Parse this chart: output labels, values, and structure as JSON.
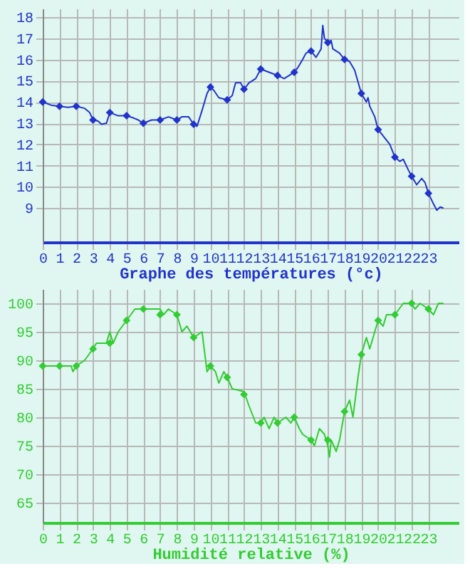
{
  "chart_data": [
    {
      "type": "line",
      "xlabel": "Graphe des températures (°c)",
      "xlim": [
        0,
        24.8
      ],
      "xticks": [
        0,
        1,
        2,
        3,
        4,
        5,
        6,
        7,
        8,
        9,
        10,
        11,
        12,
        13,
        14,
        15,
        16,
        17,
        18,
        19,
        20,
        21,
        22,
        23
      ],
      "ylim": [
        7.4,
        18.4
      ],
      "yticks": [
        9,
        10,
        11,
        12,
        13,
        14,
        15,
        16,
        17,
        18
      ],
      "grid": true,
      "series": [
        {
          "type": "line",
          "color": "#2233cc",
          "marker": "none",
          "x": [
            0,
            0.5,
            1,
            1.5,
            2,
            2.5,
            2.8,
            3,
            3.3,
            3.5,
            3.8,
            4,
            4.5,
            5,
            5.4,
            5.7,
            6,
            6.5,
            7,
            7.5,
            8,
            8.3,
            8.7,
            9,
            9.2,
            9.5,
            9.8,
            10,
            10.2,
            10.5,
            11,
            11.3,
            11.5,
            11.8,
            12,
            12.3,
            12.7,
            13,
            13.5,
            14,
            14.4,
            15,
            15.2,
            15.5,
            15.7,
            16,
            16.3,
            16.6,
            16.7,
            16.8,
            17,
            17.2,
            17.3,
            17.7,
            18,
            18.3,
            18.6,
            19,
            19.3,
            19.4,
            19.5,
            19.8,
            20,
            20.4,
            20.7,
            21,
            21.3,
            21.5,
            21.8,
            22,
            22.3,
            22.6,
            22.8,
            23,
            23.3,
            23.5,
            23.7,
            23.9
          ],
          "values": [
            14.0,
            13.85,
            13.8,
            13.75,
            13.8,
            13.7,
            13.5,
            13.15,
            13.1,
            12.95,
            13.0,
            13.5,
            13.35,
            13.35,
            13.25,
            13.15,
            13.0,
            13.15,
            13.15,
            13.3,
            13.15,
            13.3,
            13.3,
            12.95,
            12.85,
            13.6,
            14.4,
            14.7,
            14.55,
            14.2,
            14.1,
            14.3,
            14.9,
            14.9,
            14.6,
            14.9,
            15.1,
            15.55,
            15.4,
            15.25,
            15.1,
            15.4,
            15.6,
            16.0,
            16.3,
            16.4,
            16.1,
            16.5,
            17.6,
            17.0,
            16.8,
            16.9,
            16.5,
            16.3,
            16.0,
            15.9,
            15.5,
            14.4,
            14.0,
            14.2,
            13.8,
            13.3,
            12.7,
            12.3,
            12.0,
            11.4,
            11.2,
            11.3,
            10.8,
            10.5,
            10.1,
            10.4,
            10.2,
            9.7,
            9.2,
            8.9,
            9.05,
            9.0
          ]
        },
        {
          "type": "scatter",
          "color": "#2233cc",
          "marker": "diamond",
          "x": [
            0,
            1,
            2,
            3,
            4,
            5,
            6,
            7,
            8,
            9,
            10,
            11,
            12,
            13,
            14,
            15,
            16,
            17,
            18,
            19,
            20,
            21,
            22,
            23
          ],
          "values": [
            14.0,
            13.8,
            13.8,
            13.15,
            13.5,
            13.35,
            13.0,
            13.15,
            13.15,
            12.95,
            14.7,
            14.1,
            14.6,
            15.55,
            15.25,
            15.4,
            16.4,
            16.8,
            16.0,
            14.4,
            12.7,
            11.4,
            10.5,
            9.7
          ]
        }
      ]
    },
    {
      "type": "line",
      "xlabel": "Humidité relative (%)",
      "xlim": [
        0,
        24.8
      ],
      "xticks": [
        0,
        1,
        2,
        3,
        4,
        5,
        6,
        7,
        8,
        9,
        10,
        11,
        12,
        13,
        14,
        15,
        16,
        17,
        18,
        19,
        20,
        21,
        22,
        23
      ],
      "ylim": [
        61.5,
        102.5
      ],
      "yticks": [
        65,
        70,
        75,
        80,
        85,
        90,
        95,
        100
      ],
      "grid": true,
      "series": [
        {
          "type": "line",
          "color": "#33cc33",
          "marker": "none",
          "x": [
            0,
            1.7,
            1.8,
            2,
            2.5,
            3,
            3.2,
            3.8,
            4,
            4.2,
            4.5,
            5,
            5.5,
            6,
            7,
            7.2,
            7.5,
            8,
            8.3,
            8.6,
            8.8,
            9,
            9.5,
            9.8,
            10,
            10.3,
            10.5,
            10.8,
            11,
            11.3,
            12,
            12.3,
            12.7,
            13,
            13.2,
            13.5,
            13.8,
            14,
            14.5,
            14.8,
            15,
            15.3,
            15.5,
            16,
            16.2,
            16.5,
            16.8,
            17,
            17.1,
            17.2,
            17.5,
            17.7,
            18,
            18.3,
            18.5,
            18.8,
            19,
            19.3,
            19.5,
            20,
            20.3,
            20.5,
            21,
            21.5,
            22,
            22.2,
            22.5,
            23,
            23.3,
            23.6,
            23.9
          ],
          "values": [
            89,
            89,
            88,
            89,
            90,
            92,
            93,
            93,
            95,
            93,
            95,
            97,
            99,
            99,
            99,
            98,
            99,
            98,
            95,
            96,
            95,
            94,
            95,
            88,
            89,
            88,
            86,
            88,
            87,
            85,
            84.5,
            82,
            79,
            79,
            80,
            78,
            80,
            79,
            80,
            79,
            80,
            78,
            77,
            76,
            75,
            78,
            77,
            75,
            73,
            76,
            74,
            76,
            81,
            83,
            80,
            87,
            91,
            94,
            92,
            97,
            96,
            98,
            98,
            100,
            100,
            99,
            100,
            99,
            98,
            100,
            100
          ]
        },
        {
          "type": "scatter",
          "color": "#33cc33",
          "marker": "diamond",
          "x": [
            0,
            1,
            2,
            3,
            4,
            5,
            6,
            7,
            8,
            9,
            10,
            11,
            12,
            13,
            14,
            15,
            16,
            17,
            18,
            19,
            20,
            21,
            22,
            23
          ],
          "values": [
            89,
            89,
            89,
            92,
            93,
            97,
            99,
            98,
            98,
            94,
            89,
            87,
            84,
            79,
            79,
            80,
            76,
            76,
            81,
            91,
            97,
            98,
            100,
            99
          ]
        }
      ]
    }
  ]
}
